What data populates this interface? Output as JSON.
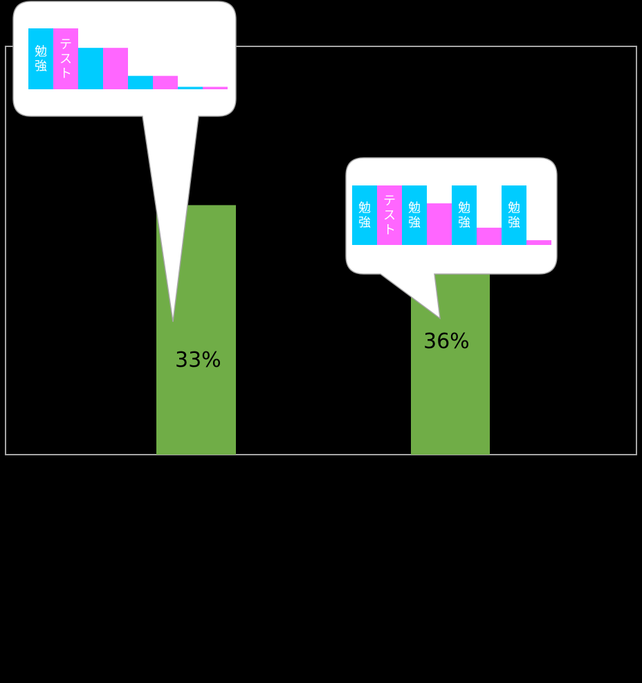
{
  "chart_data": {
    "type": "bar",
    "title": "",
    "xlabel": "",
    "ylabel": "",
    "ylim": [
      0,
      54
    ],
    "grid": false,
    "legend": "none",
    "colors": {
      "main_bar": "#70ad47",
      "study": "#00ccff",
      "test": "#ff66ff",
      "frame": "#a6a6a6"
    },
    "categories": [
      "",
      ""
    ],
    "values": [
      33,
      36
    ],
    "data_labels": [
      "33%",
      "36%"
    ],
    "callouts": [
      {
        "bars": [
          {
            "kind": "study",
            "value": 100,
            "label": "勉強"
          },
          {
            "kind": "test",
            "value": 100,
            "label": "テスト"
          },
          {
            "kind": "study",
            "value": 68,
            "label": ""
          },
          {
            "kind": "test",
            "value": 68,
            "label": ""
          },
          {
            "kind": "study",
            "value": 22,
            "label": ""
          },
          {
            "kind": "test",
            "value": 22,
            "label": ""
          },
          {
            "kind": "study",
            "value": 4,
            "label": ""
          },
          {
            "kind": "test",
            "value": 4,
            "label": ""
          }
        ]
      },
      {
        "bars": [
          {
            "kind": "study",
            "value": 100,
            "label": "勉強"
          },
          {
            "kind": "test",
            "value": 100,
            "label": "テスト"
          },
          {
            "kind": "study",
            "value": 100,
            "label": "勉強"
          },
          {
            "kind": "test",
            "value": 70,
            "label": ""
          },
          {
            "kind": "study",
            "value": 100,
            "label": "勉強"
          },
          {
            "kind": "test",
            "value": 29,
            "label": ""
          },
          {
            "kind": "study",
            "value": 100,
            "label": "勉強"
          },
          {
            "kind": "test",
            "value": 8,
            "label": ""
          }
        ]
      }
    ]
  }
}
